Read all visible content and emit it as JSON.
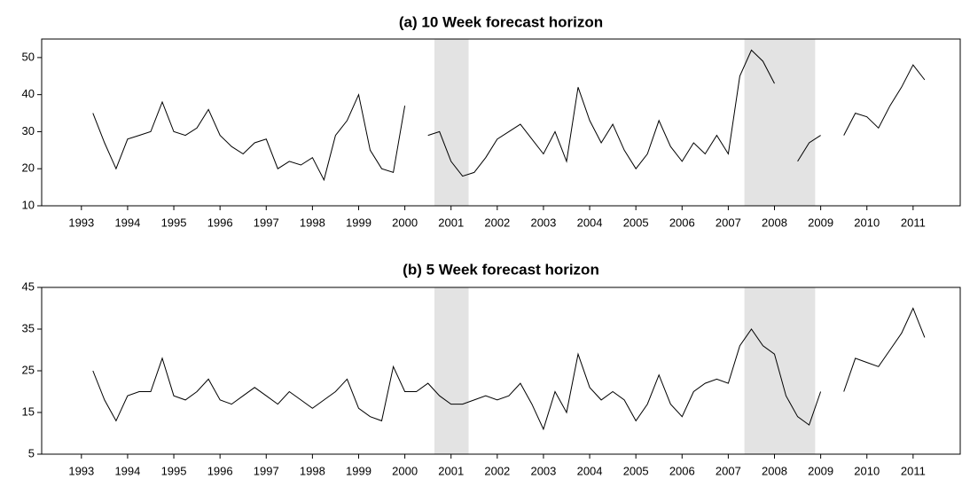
{
  "chart_data": [
    {
      "type": "line",
      "title": "(a) 10 Week forecast horizon",
      "x": [
        1993.75,
        1994,
        1994.25,
        1994.5,
        1994.75,
        1995,
        1995.25,
        1995.5,
        1995.75,
        1996,
        1996.25,
        1996.5,
        1996.75,
        1997,
        1997.25,
        1997.5,
        1997.75,
        1998,
        1998.25,
        1998.5,
        1998.75,
        1999,
        1999.25,
        1999.5,
        1999.75,
        2000,
        2000.25,
        2000.5,
        2000.75,
        2001,
        2001.25,
        2001.5,
        2001.75,
        2002,
        2002.25,
        2002.5,
        2002.75,
        2003,
        2003.25,
        2003.5,
        2003.75,
        2004,
        2004.25,
        2004.5,
        2004.75,
        2005,
        2005.25,
        2005.5,
        2005.75,
        2006,
        2006.25,
        2006.5,
        2006.75,
        2007,
        2007.25,
        2007.5,
        2007.75,
        2008,
        2008.25,
        2008.5,
        2008.75,
        2009,
        2009.25,
        2009.5,
        2009.75,
        2010,
        2010.25,
        2010.5,
        2010.75,
        2011,
        2011.25,
        2011.5,
        2011.75
      ],
      "values": [
        35,
        27,
        20,
        28,
        29,
        30,
        38,
        30,
        29,
        31,
        36,
        29,
        26,
        24,
        27,
        28,
        20,
        22,
        21,
        23,
        17,
        29,
        33,
        40,
        25,
        20,
        19,
        37,
        null,
        29,
        30,
        22,
        18,
        19,
        23,
        28,
        30,
        32,
        28,
        24,
        30,
        22,
        42,
        33,
        27,
        32,
        25,
        20,
        24,
        33,
        26,
        22,
        27,
        24,
        29,
        24,
        45,
        52,
        49,
        43,
        null,
        22,
        27,
        29,
        null,
        29,
        35,
        34,
        31,
        37,
        42,
        48,
        44
      ],
      "color": "#000000",
      "xlim": [
        1992.64,
        2012.52
      ],
      "ylim": [
        10,
        55
      ],
      "xticks": [
        {
          "value": 1993.5,
          "label": "1993"
        },
        {
          "value": 1994.5,
          "label": "1994"
        },
        {
          "value": 1995.5,
          "label": "1995"
        },
        {
          "value": 1996.5,
          "label": "1996"
        },
        {
          "value": 1997.5,
          "label": "1997"
        },
        {
          "value": 1998.5,
          "label": "1998"
        },
        {
          "value": 1999.5,
          "label": "1999"
        },
        {
          "value": 2000.5,
          "label": "2000"
        },
        {
          "value": 2001.5,
          "label": "2001"
        },
        {
          "value": 2002.5,
          "label": "2002"
        },
        {
          "value": 2003.5,
          "label": "2003"
        },
        {
          "value": 2004.5,
          "label": "2004"
        },
        {
          "value": 2005.5,
          "label": "2005"
        },
        {
          "value": 2006.5,
          "label": "2006"
        },
        {
          "value": 2007.5,
          "label": "2007"
        },
        {
          "value": 2008.5,
          "label": "2008"
        },
        {
          "value": 2009.5,
          "label": "2009"
        },
        {
          "value": 2010.5,
          "label": "2010"
        },
        {
          "value": 2011.5,
          "label": "2011"
        }
      ],
      "yticks": [
        10,
        20,
        30,
        40,
        50
      ],
      "shaded_regions": [
        [
          2001.14,
          2001.88
        ],
        [
          2007.85,
          2009.38
        ]
      ],
      "shade_color": "#e3e3e3"
    },
    {
      "type": "line",
      "title": "(b) 5 Week forecast horizon",
      "x": [
        1993.75,
        1994,
        1994.25,
        1994.5,
        1994.75,
        1995,
        1995.25,
        1995.5,
        1995.75,
        1996,
        1996.25,
        1996.5,
        1996.75,
        1997,
        1997.25,
        1997.5,
        1997.75,
        1998,
        1998.25,
        1998.5,
        1998.75,
        1999,
        1999.25,
        1999.5,
        1999.75,
        2000,
        2000.25,
        2000.5,
        2000.75,
        2001,
        2001.25,
        2001.5,
        2001.75,
        2002,
        2002.25,
        2002.5,
        2002.75,
        2003,
        2003.25,
        2003.5,
        2003.75,
        2004,
        2004.25,
        2004.5,
        2004.75,
        2005,
        2005.25,
        2005.5,
        2005.75,
        2006,
        2006.25,
        2006.5,
        2006.75,
        2007,
        2007.25,
        2007.5,
        2007.75,
        2008,
        2008.25,
        2008.5,
        2008.75,
        2009,
        2009.25,
        2009.5,
        2009.75,
        2010,
        2010.25,
        2010.5,
        2010.75,
        2011,
        2011.25,
        2011.5,
        2011.75
      ],
      "values": [
        25,
        18,
        13,
        19,
        20,
        20,
        28,
        19,
        18,
        20,
        23,
        18,
        17,
        19,
        21,
        19,
        17,
        20,
        18,
        16,
        18,
        20,
        23,
        16,
        14,
        13,
        26,
        20,
        20,
        22,
        19,
        17,
        17,
        18,
        19,
        18,
        19,
        22,
        17,
        11,
        20,
        15,
        29,
        21,
        18,
        20,
        18,
        13,
        17,
        24,
        17,
        14,
        20,
        22,
        23,
        22,
        31,
        35,
        31,
        29,
        19,
        14,
        12,
        20,
        null,
        20,
        28,
        27,
        26,
        30,
        34,
        40,
        33
      ],
      "color": "#000000",
      "xlim": [
        1992.64,
        2012.52
      ],
      "ylim": [
        5,
        45
      ],
      "xticks": [
        {
          "value": 1993.5,
          "label": "1993"
        },
        {
          "value": 1994.5,
          "label": "1994"
        },
        {
          "value": 1995.5,
          "label": "1995"
        },
        {
          "value": 1996.5,
          "label": "1996"
        },
        {
          "value": 1997.5,
          "label": "1997"
        },
        {
          "value": 1998.5,
          "label": "1998"
        },
        {
          "value": 1999.5,
          "label": "1999"
        },
        {
          "value": 2000.5,
          "label": "2000"
        },
        {
          "value": 2001.5,
          "label": "2001"
        },
        {
          "value": 2002.5,
          "label": "2002"
        },
        {
          "value": 2003.5,
          "label": "2003"
        },
        {
          "value": 2004.5,
          "label": "2004"
        },
        {
          "value": 2005.5,
          "label": "2005"
        },
        {
          "value": 2006.5,
          "label": "2006"
        },
        {
          "value": 2007.5,
          "label": "2007"
        },
        {
          "value": 2008.5,
          "label": "2008"
        },
        {
          "value": 2009.5,
          "label": "2009"
        },
        {
          "value": 2010.5,
          "label": "2010"
        },
        {
          "value": 2011.5,
          "label": "2011"
        }
      ],
      "yticks": [
        5,
        15,
        25,
        35,
        45
      ],
      "shaded_regions": [
        [
          2001.14,
          2001.88
        ],
        [
          2007.85,
          2009.38
        ]
      ],
      "shade_color": "#e3e3e3"
    }
  ]
}
